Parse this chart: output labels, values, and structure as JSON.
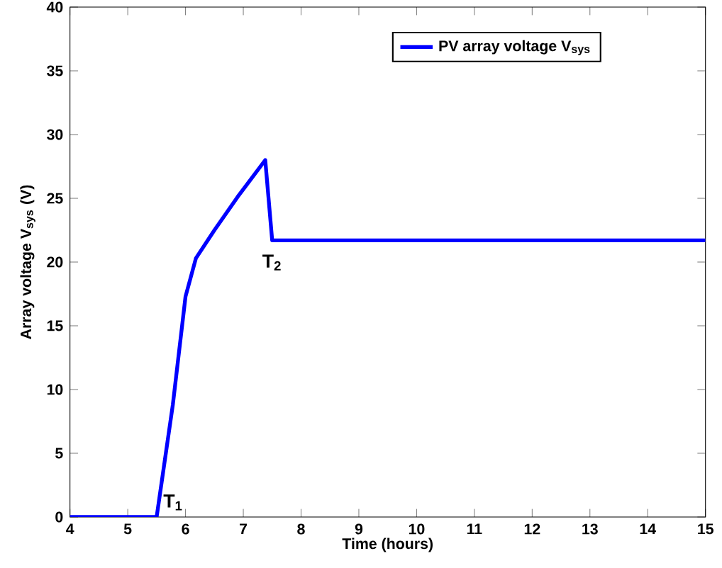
{
  "chart_data": {
    "type": "line",
    "xlabel": "Time (hours)",
    "ylabel": "Array voltage V$_{sys}$ (V)",
    "xlim": [
      4,
      15
    ],
    "ylim": [
      0,
      40
    ],
    "xticks": [
      4,
      5,
      6,
      7,
      8,
      9,
      10,
      11,
      12,
      13,
      14,
      15
    ],
    "yticks": [
      0,
      5,
      10,
      15,
      20,
      25,
      30,
      35,
      40
    ],
    "series": [
      {
        "name": "PV array voltage V$_{sys}$",
        "color": "#0000ff",
        "x": [
          4,
          5.5,
          5.78,
          6.0,
          6.18,
          6.5,
          6.9,
          7.38,
          7.5,
          10,
          15
        ],
        "values": [
          0,
          0,
          8.8,
          17.3,
          20.3,
          22.5,
          25.1,
          28,
          21.7,
          21.7,
          21.7
        ]
      }
    ],
    "annotations": [
      {
        "text": "T$_{1}$",
        "x": 5.5,
        "y": 0
      },
      {
        "text": "T$_{2}$",
        "x": 7.5,
        "y": 21.7
      }
    ],
    "legend": "top right",
    "grid": false,
    "marker": "none",
    "line_style": "solid"
  }
}
